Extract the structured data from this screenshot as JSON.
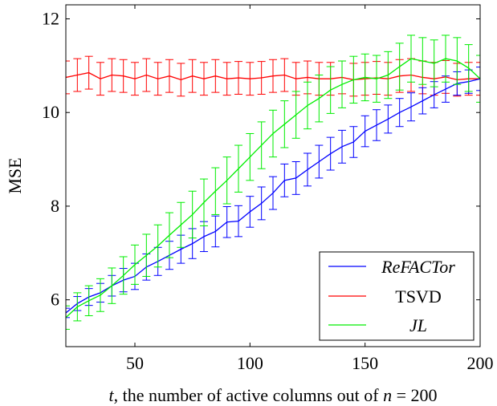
{
  "chart_data": {
    "type": "line",
    "xlabel": "t, the number of active columns out of n = 200",
    "xlabel_parts": {
      "t": "t",
      "mid": ", the number of active columns out of ",
      "n": "n",
      "eq": " = 200"
    },
    "ylabel": "MSE",
    "xlim": [
      20,
      200
    ],
    "ylim": [
      5.0,
      12.3
    ],
    "xticks": [
      50,
      100,
      150,
      200
    ],
    "yticks": [
      6,
      8,
      10,
      12
    ],
    "grid": false,
    "legend_position": "bottom-right",
    "x": [
      20,
      25,
      30,
      35,
      40,
      45,
      50,
      55,
      60,
      65,
      70,
      75,
      80,
      85,
      90,
      95,
      100,
      105,
      110,
      115,
      120,
      125,
      130,
      135,
      140,
      145,
      150,
      155,
      160,
      165,
      170,
      175,
      180,
      185,
      190,
      195,
      200
    ],
    "series": [
      {
        "name": "ReFACTor",
        "italic": true,
        "color": "#0000ff",
        "values": [
          5.72,
          5.92,
          6.06,
          6.15,
          6.3,
          6.42,
          6.5,
          6.7,
          6.82,
          6.95,
          7.08,
          7.2,
          7.35,
          7.46,
          7.66,
          7.68,
          7.88,
          8.06,
          8.28,
          8.55,
          8.6,
          8.78,
          8.95,
          9.12,
          9.27,
          9.37,
          9.6,
          9.73,
          9.86,
          10.0,
          10.12,
          10.25,
          10.38,
          10.5,
          10.62,
          10.66,
          10.72
        ],
        "err": [
          0.1,
          0.15,
          0.18,
          0.2,
          0.22,
          0.25,
          0.28,
          0.28,
          0.3,
          0.3,
          0.3,
          0.32,
          0.32,
          0.33,
          0.33,
          0.33,
          0.33,
          0.35,
          0.35,
          0.35,
          0.35,
          0.35,
          0.35,
          0.35,
          0.35,
          0.33,
          0.33,
          0.33,
          0.3,
          0.3,
          0.3,
          0.28,
          0.28,
          0.28,
          0.25,
          0.25,
          0.25
        ]
      },
      {
        "name": "TSVD",
        "italic": false,
        "color": "#ff0000",
        "values": [
          10.75,
          10.8,
          10.85,
          10.72,
          10.8,
          10.78,
          10.72,
          10.8,
          10.72,
          10.78,
          10.7,
          10.78,
          10.72,
          10.78,
          10.72,
          10.74,
          10.72,
          10.74,
          10.78,
          10.8,
          10.72,
          10.75,
          10.72,
          10.72,
          10.75,
          10.7,
          10.72,
          10.74,
          10.72,
          10.78,
          10.8,
          10.75,
          10.72,
          10.76,
          10.7,
          10.72,
          10.72
        ],
        "err": [
          0.35,
          0.35,
          0.35,
          0.35,
          0.35,
          0.35,
          0.35,
          0.35,
          0.35,
          0.35,
          0.35,
          0.35,
          0.35,
          0.35,
          0.35,
          0.35,
          0.35,
          0.35,
          0.35,
          0.35,
          0.35,
          0.35,
          0.35,
          0.35,
          0.35,
          0.35,
          0.35,
          0.35,
          0.35,
          0.35,
          0.35,
          0.35,
          0.35,
          0.35,
          0.35,
          0.35,
          0.35
        ]
      },
      {
        "name": "JL",
        "italic": true,
        "color": "#00ee00",
        "values": [
          5.62,
          5.85,
          5.98,
          6.1,
          6.3,
          6.52,
          6.75,
          6.95,
          7.15,
          7.38,
          7.6,
          7.82,
          8.08,
          8.32,
          8.55,
          8.8,
          9.05,
          9.3,
          9.55,
          9.75,
          9.95,
          10.15,
          10.3,
          10.48,
          10.6,
          10.7,
          10.75,
          10.72,
          10.8,
          10.98,
          11.15,
          11.1,
          11.05,
          11.15,
          11.1,
          10.95,
          10.72
        ],
        "err": [
          0.25,
          0.3,
          0.32,
          0.35,
          0.38,
          0.4,
          0.42,
          0.45,
          0.45,
          0.48,
          0.48,
          0.5,
          0.5,
          0.5,
          0.5,
          0.5,
          0.5,
          0.5,
          0.5,
          0.5,
          0.5,
          0.5,
          0.5,
          0.5,
          0.5,
          0.5,
          0.5,
          0.5,
          0.5,
          0.5,
          0.5,
          0.5,
          0.5,
          0.5,
          0.5,
          0.5,
          0.5
        ]
      }
    ]
  }
}
